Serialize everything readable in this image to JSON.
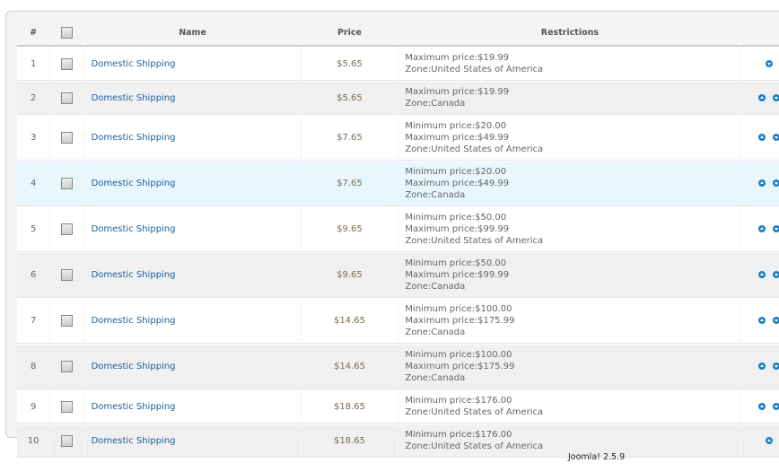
{
  "table": {
    "headers": {
      "num": "#",
      "name": "Name",
      "price": "Price",
      "restrictions": "Restrictions"
    },
    "rows": [
      {
        "num": "1",
        "name": "Domestic Shipping",
        "price": "$5.65",
        "restrictions": [
          "Maximum price:$19.99",
          "Zone:United States of America"
        ],
        "up": false,
        "down": true
      },
      {
        "num": "2",
        "name": "Domestic Shipping",
        "price": "$5.65",
        "restrictions": [
          "Maximum price:$19.99",
          "Zone:Canada"
        ],
        "up": true,
        "down": true
      },
      {
        "num": "3",
        "name": "Domestic Shipping",
        "price": "$7.65",
        "restrictions": [
          "Minimum price:$20.00",
          "Maximum price:$49.99",
          "Zone:United States of America"
        ],
        "up": true,
        "down": true
      },
      {
        "num": "4",
        "name": "Domestic Shipping",
        "price": "$7.65",
        "restrictions": [
          "Minimum price:$20.00",
          "Maximum price:$49.99",
          "Zone:Canada"
        ],
        "up": true,
        "down": true,
        "highlighted": true
      },
      {
        "num": "5",
        "name": "Domestic Shipping",
        "price": "$9.65",
        "restrictions": [
          "Minimum price:$50.00",
          "Maximum price:$99.99",
          "Zone:United States of America"
        ],
        "up": true,
        "down": true
      },
      {
        "num": "6",
        "name": "Domestic Shipping",
        "price": "$9.65",
        "restrictions": [
          "Minimum price:$50.00",
          "Maximum price:$99.99",
          "Zone:Canada"
        ],
        "up": true,
        "down": true
      },
      {
        "num": "7",
        "name": "Domestic Shipping",
        "price": "$14.65",
        "restrictions": [
          "Minimum price:$100.00",
          "Maximum price:$175.99",
          "Zone:Canada"
        ],
        "up": true,
        "down": true
      },
      {
        "num": "8",
        "name": "Domestic Shipping",
        "price": "$14.65",
        "restrictions": [
          "Minimum price:$100.00",
          "Maximum price:$175.99",
          "Zone:Canada"
        ],
        "up": true,
        "down": true
      },
      {
        "num": "9",
        "name": "Domestic Shipping",
        "price": "$18.65",
        "restrictions": [
          "Minimum price:$176.00",
          "Zone:United States of America"
        ],
        "up": true,
        "down": true
      },
      {
        "num": "10",
        "name": "Domestic Shipping",
        "price": "$18.65",
        "restrictions": [
          "Minimum price:$176.00",
          "Zone:United States of America"
        ],
        "up": true,
        "down": false
      }
    ]
  },
  "footer": {
    "version": "Joomla! 2.5.9"
  }
}
